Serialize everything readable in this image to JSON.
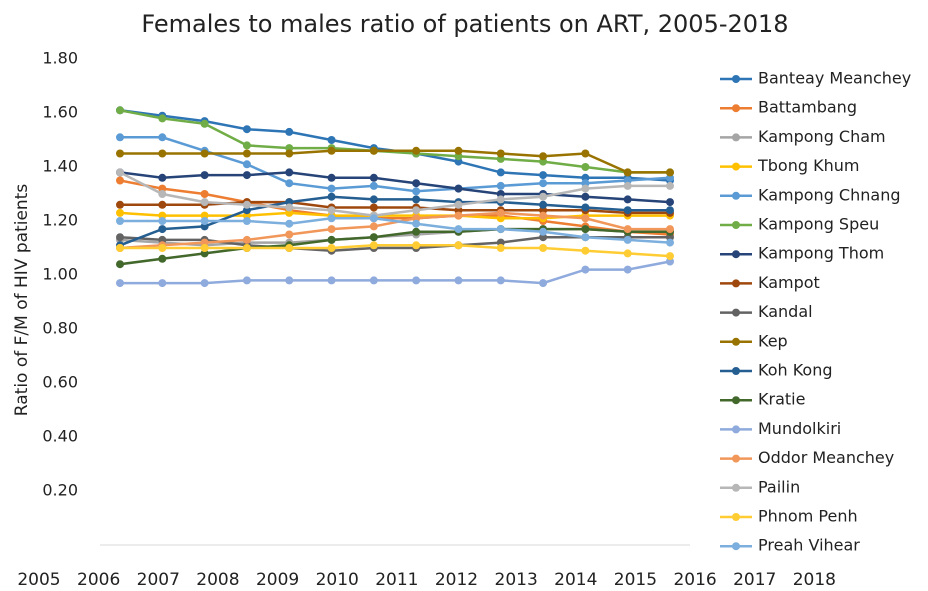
{
  "chart_data": {
    "type": "line",
    "title": "Females to males ratio of patients on ART, 2005-2018",
    "y_label": "Ratio of F/M of HIV patients",
    "categories": [
      "2005",
      "2006",
      "2007",
      "2008",
      "2009",
      "2010",
      "2011",
      "2012",
      "2013",
      "2014",
      "2015",
      "2016",
      "2017",
      "2018"
    ],
    "ylim": [
      0,
      1.8
    ],
    "yticks": [
      {
        "value": 0.2,
        "label": "0.20"
      },
      {
        "value": 0.4,
        "label": "0.40"
      },
      {
        "value": 0.6,
        "label": "0.60"
      },
      {
        "value": 0.8,
        "label": "0.80"
      },
      {
        "value": 1.0,
        "label": "1.00"
      },
      {
        "value": 1.2,
        "label": "1.20"
      },
      {
        "value": 1.4,
        "label": "1.40"
      },
      {
        "value": 1.6,
        "label": "1.60"
      },
      {
        "value": 1.8,
        "label": "1.80"
      }
    ],
    "legend": "right",
    "series": [
      {
        "name": "Banteay Meanchey",
        "color": "#2e75b6",
        "values": [
          1.61,
          1.59,
          1.57,
          1.54,
          1.53,
          1.5,
          1.47,
          1.45,
          1.42,
          1.38,
          1.37,
          1.36,
          1.36,
          1.35
        ]
      },
      {
        "name": "Battambang",
        "color": "#ed7d31",
        "values": [
          1.35,
          1.32,
          1.3,
          1.27,
          1.24,
          1.22,
          1.21,
          1.21,
          1.22,
          1.22,
          1.2,
          1.18,
          1.16,
          1.15
        ]
      },
      {
        "name": "Kampong Cham",
        "color": "#a5a5a5",
        "values": [
          1.13,
          1.12,
          1.11,
          1.12,
          1.12,
          1.13,
          1.14,
          1.15,
          1.16,
          1.17,
          1.17,
          1.17,
          1.16,
          1.16
        ]
      },
      {
        "name": "Tbong Khum",
        "color": "#ffc000",
        "values": [
          1.23,
          1.22,
          1.22,
          1.22,
          1.23,
          1.22,
          1.22,
          1.22,
          1.22,
          1.21,
          1.21,
          1.22,
          1.22,
          1.22
        ]
      },
      {
        "name": "Kampong Chnang",
        "color": "#5b9bd5",
        "values": [
          1.51,
          1.51,
          1.46,
          1.41,
          1.34,
          1.32,
          1.33,
          1.31,
          1.32,
          1.33,
          1.34,
          1.34,
          1.35,
          1.36
        ]
      },
      {
        "name": "Kampong Speu",
        "color": "#70ad47",
        "values": [
          1.61,
          1.58,
          1.56,
          1.48,
          1.47,
          1.47,
          1.46,
          1.45,
          1.44,
          1.43,
          1.42,
          1.4,
          1.38,
          1.38
        ]
      },
      {
        "name": "Kampong Thom",
        "color": "#264478",
        "values": [
          1.38,
          1.36,
          1.37,
          1.37,
          1.38,
          1.36,
          1.36,
          1.34,
          1.32,
          1.3,
          1.3,
          1.29,
          1.28,
          1.27
        ]
      },
      {
        "name": "Kampot",
        "color": "#9e480e",
        "values": [
          1.26,
          1.26,
          1.26,
          1.27,
          1.27,
          1.25,
          1.25,
          1.25,
          1.24,
          1.24,
          1.24,
          1.24,
          1.23,
          1.23
        ]
      },
      {
        "name": "Kandal",
        "color": "#636363",
        "values": [
          1.14,
          1.13,
          1.13,
          1.11,
          1.1,
          1.09,
          1.1,
          1.1,
          1.11,
          1.12,
          1.14,
          1.14,
          1.14,
          1.14
        ]
      },
      {
        "name": "Kep",
        "color": "#997300",
        "values": [
          1.45,
          1.45,
          1.45,
          1.45,
          1.45,
          1.46,
          1.46,
          1.46,
          1.46,
          1.45,
          1.44,
          1.45,
          1.38,
          1.38
        ]
      },
      {
        "name": "Koh Kong",
        "color": "#255e91",
        "values": [
          1.11,
          1.17,
          1.18,
          1.24,
          1.27,
          1.29,
          1.28,
          1.28,
          1.27,
          1.27,
          1.26,
          1.25,
          1.24,
          1.24
        ]
      },
      {
        "name": "Kratie",
        "color": "#43682b",
        "values": [
          1.04,
          1.06,
          1.08,
          1.1,
          1.11,
          1.13,
          1.14,
          1.16,
          1.16,
          1.17,
          1.17,
          1.17,
          1.16,
          1.16
        ]
      },
      {
        "name": "Mundolkiri",
        "color": "#8faadc",
        "values": [
          0.97,
          0.97,
          0.97,
          0.98,
          0.98,
          0.98,
          0.98,
          0.98,
          0.98,
          0.98,
          0.97,
          1.02,
          1.02,
          1.05
        ]
      },
      {
        "name": "Oddor Meanchey",
        "color": "#f1975a",
        "values": [
          1.1,
          1.11,
          1.12,
          1.13,
          1.15,
          1.17,
          1.18,
          1.21,
          1.22,
          1.23,
          1.22,
          1.21,
          1.17,
          1.17
        ]
      },
      {
        "name": "Pailin",
        "color": "#b7b7b7",
        "values": [
          1.38,
          1.3,
          1.27,
          1.26,
          1.25,
          1.24,
          1.22,
          1.24,
          1.26,
          1.28,
          1.29,
          1.32,
          1.33,
          1.33
        ]
      },
      {
        "name": "Phnom Penh",
        "color": "#ffcd33",
        "values": [
          1.1,
          1.1,
          1.1,
          1.1,
          1.1,
          1.1,
          1.11,
          1.11,
          1.11,
          1.1,
          1.1,
          1.09,
          1.08,
          1.07
        ]
      },
      {
        "name": "Preah Vihear",
        "color": "#7cafdd",
        "values": [
          1.2,
          1.2,
          1.2,
          1.2,
          1.19,
          1.21,
          1.21,
          1.19,
          1.17,
          1.17,
          1.16,
          1.14,
          1.13,
          1.12
        ]
      }
    ]
  }
}
